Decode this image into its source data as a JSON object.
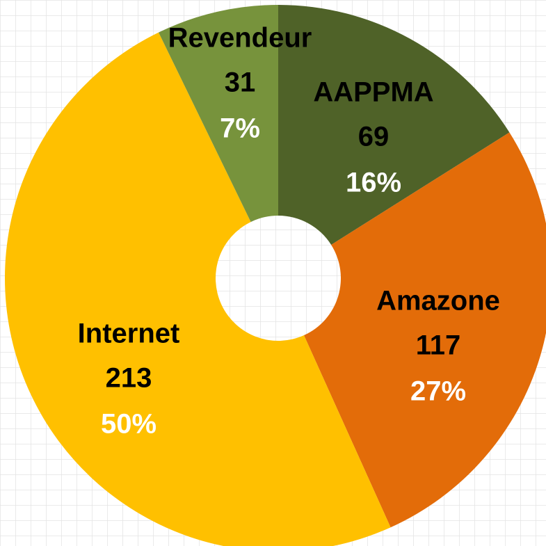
{
  "chart_data": {
    "type": "donut",
    "categories": [
      "AAPPMA",
      "Amazone",
      "Internet",
      "Revendeur"
    ],
    "values": [
      69,
      117,
      213,
      31
    ],
    "percent_labels": [
      "16%",
      "27%",
      "50%",
      "7%"
    ],
    "colors": [
      "#4f6228",
      "#e36c09",
      "#ffc000",
      "#77933c"
    ]
  }
}
